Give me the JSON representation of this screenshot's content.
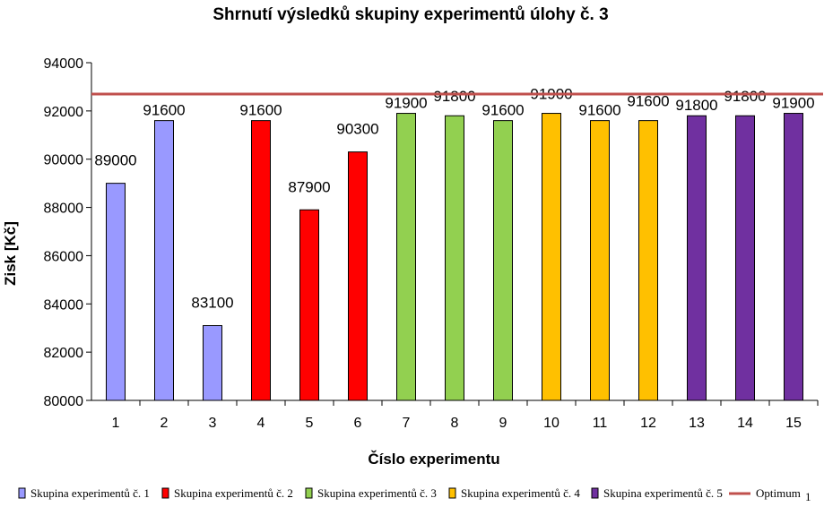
{
  "chart_data": {
    "type": "bar",
    "title": "Shrnutí výsledků skupiny experimentů úlohy č. 3",
    "xlabel": "Číslo experimentu",
    "ylabel": "Zisk [Kč]",
    "ylim": [
      80000,
      94000
    ],
    "yticks": [
      "80000",
      "82000",
      "84000",
      "86000",
      "88000",
      "90000",
      "92000",
      "94000"
    ],
    "categories": [
      "1",
      "2",
      "3",
      "4",
      "5",
      "6",
      "7",
      "8",
      "9",
      "10",
      "11",
      "12",
      "13",
      "14",
      "15"
    ],
    "values": [
      89000,
      91600,
      83100,
      91600,
      87900,
      90300,
      91900,
      91800,
      91600,
      91900,
      91600,
      91600,
      91800,
      91800,
      91900
    ],
    "data_labels": [
      "89000",
      "91600",
      "83100",
      "91600",
      "87900",
      "90300",
      "91900",
      "91800",
      "91600",
      "91900",
      "91600",
      "91600",
      "91800",
      "91800",
      "91900"
    ],
    "groups": [
      1,
      1,
      1,
      2,
      2,
      2,
      3,
      3,
      3,
      4,
      4,
      4,
      5,
      5,
      5
    ],
    "group_colors": {
      "1": "#9999ff",
      "2": "#ff0000",
      "3": "#92d050",
      "4": "#ffc000",
      "5": "#7030a0"
    },
    "optimum": 92700,
    "optimum_color": "#c0504d",
    "grid": false,
    "legend_position": "bottom",
    "legend": [
      {
        "label": "Skupina experimentů č. 1",
        "color": "#9999ff"
      },
      {
        "label": "Skupina experimentů č. 2",
        "color": "#ff0000"
      },
      {
        "label": "Skupina experimentů č. 3",
        "color": "#92d050"
      },
      {
        "label": "Skupina experimentů č. 4",
        "color": "#ffc000"
      },
      {
        "label": "Skupina experimentů č. 5",
        "color": "#7030a0"
      },
      {
        "label": "Optimum",
        "color": "#c0504d",
        "line": true
      }
    ],
    "legend_suffix": "1"
  }
}
